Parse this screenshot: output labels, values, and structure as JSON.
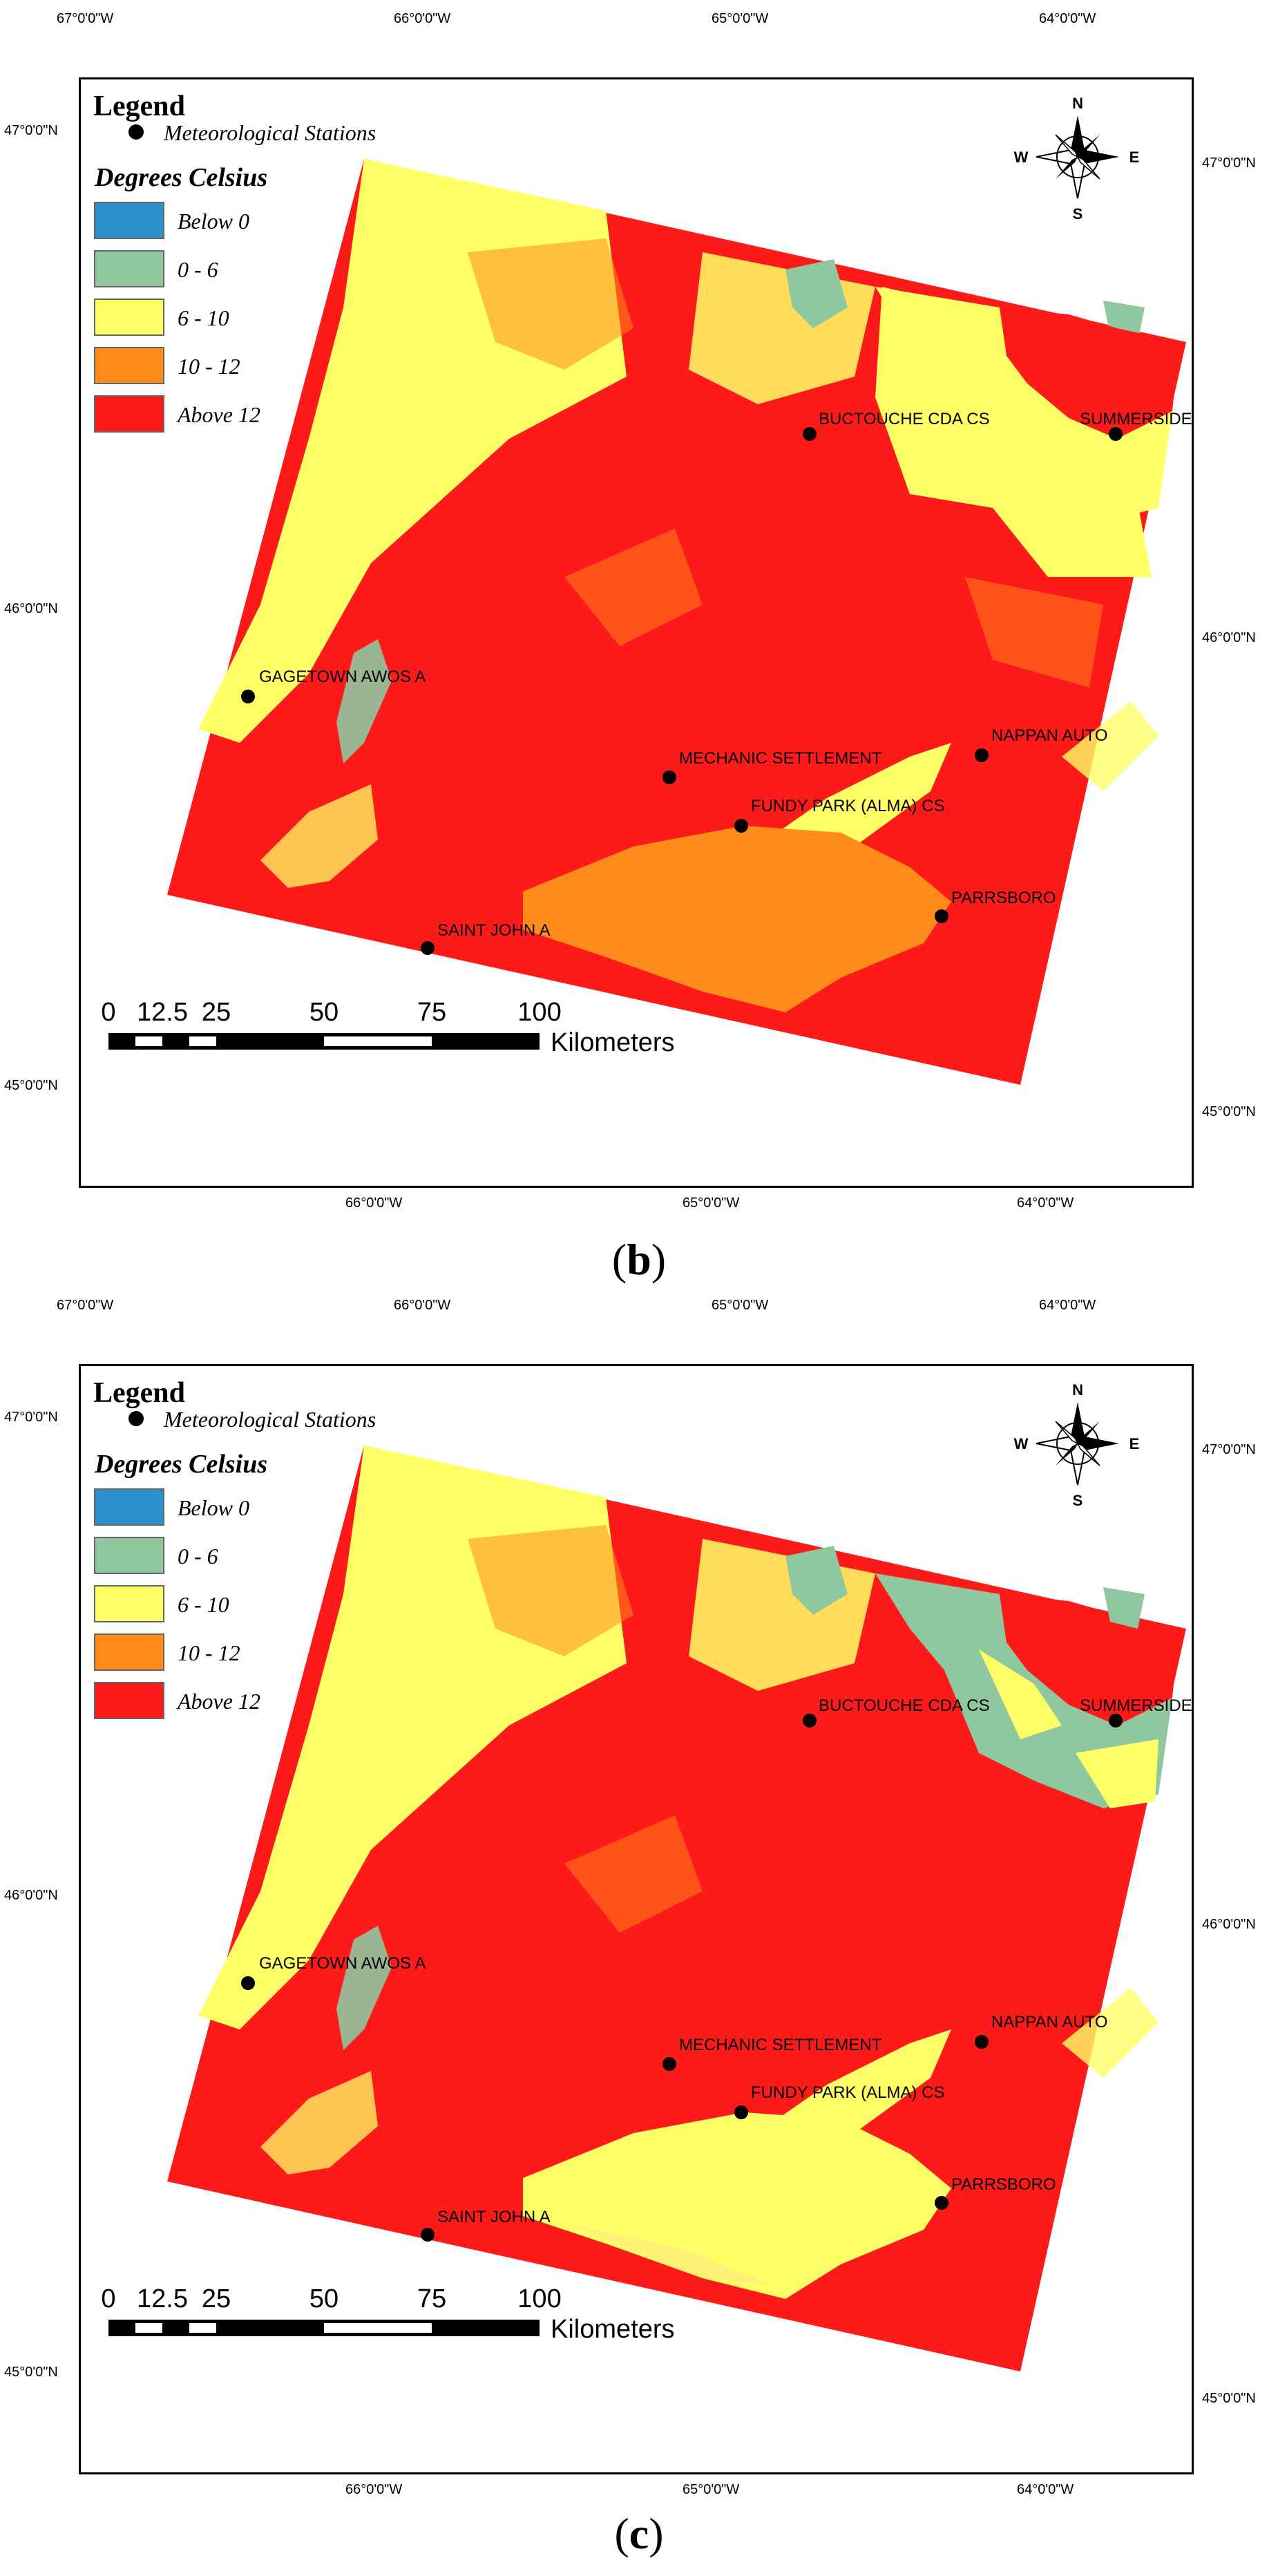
{
  "figure": {
    "panels": [
      {
        "id": "b",
        "caption": "(b)",
        "caption_letter": "b",
        "legend_title": "Legend",
        "stations_label": "Meteorological Stations",
        "units_title": "Degrees Celsius",
        "classes": [
          {
            "label": "Below 0",
            "color": "#2b8fc9"
          },
          {
            "label": "0 - 6",
            "color": "#8fc79f"
          },
          {
            "label": "6 - 10",
            "color": "#ffff66"
          },
          {
            "label": "10 - 12",
            "color": "#ff8c1a"
          },
          {
            "label": "Above 12",
            "color": "#ff1a1a"
          }
        ],
        "top_ticks": [
          "67°0'0\"W",
          "66°0'0\"W",
          "65°0'0\"W",
          "64°0'0\"W"
        ],
        "bottom_ticks": [
          "66°0'0\"W",
          "65°0'0\"W",
          "64°0'0\"W"
        ],
        "left_ticks": [
          "47°0'0\"N",
          "46°0'0\"N",
          "45°0'0\"N"
        ],
        "right_ticks": [
          "47°0'0\"N",
          "46°0'0\"N",
          "45°0'0\"N"
        ],
        "compass": {
          "n": "N",
          "s": "S",
          "e": "E",
          "w": "W"
        },
        "scale_labels": [
          "0",
          "12.5",
          "25",
          "50",
          "75",
          "100"
        ],
        "scale_units": "Kilometers",
        "stations": [
          "BUCTOUCHE CDA CS",
          "SUMMERSIDE",
          "GAGETOWN AWOS A",
          "MECHANIC SETTLEMENT",
          "NAPPAN AUTO",
          "FUNDY PARK (ALMA) CS",
          "PARRSBORO",
          "SAINT JOHN A"
        ],
        "bay_class": "10 - 12"
      },
      {
        "id": "c",
        "caption": "(c)",
        "caption_letter": "c",
        "legend_title": "Legend",
        "stations_label": "Meteorological Stations",
        "units_title": "Degrees Celsius",
        "classes": [
          {
            "label": "Below 0",
            "color": "#2b8fc9"
          },
          {
            "label": "0 - 6",
            "color": "#8fc79f"
          },
          {
            "label": "6 - 10",
            "color": "#ffff66"
          },
          {
            "label": "10 - 12",
            "color": "#ff8c1a"
          },
          {
            "label": "Above 12",
            "color": "#ff1a1a"
          }
        ],
        "top_ticks": [
          "67°0'0\"W",
          "66°0'0\"W",
          "65°0'0\"W",
          "64°0'0\"W"
        ],
        "bottom_ticks": [
          "66°0'0\"W",
          "65°0'0\"W",
          "64°0'0\"W"
        ],
        "left_ticks": [
          "47°0'0\"N",
          "46°0'0\"N",
          "45°0'0\"N"
        ],
        "right_ticks": [
          "47°0'0\"N",
          "46°0'0\"N",
          "45°0'0\"N"
        ],
        "compass": {
          "n": "N",
          "s": "S",
          "e": "E",
          "w": "W"
        },
        "scale_labels": [
          "0",
          "12.5",
          "25",
          "50",
          "75",
          "100"
        ],
        "scale_units": "Kilometers",
        "stations": [
          "BUCTOUCHE CDA CS",
          "SUMMERSIDE",
          "GAGETOWN AWOS A",
          "MECHANIC SETTLEMENT",
          "NAPPAN AUTO",
          "FUNDY PARK (ALMA) CS",
          "PARRSBORO",
          "SAINT JOHN A"
        ],
        "bay_class": "6 - 10"
      }
    ]
  }
}
